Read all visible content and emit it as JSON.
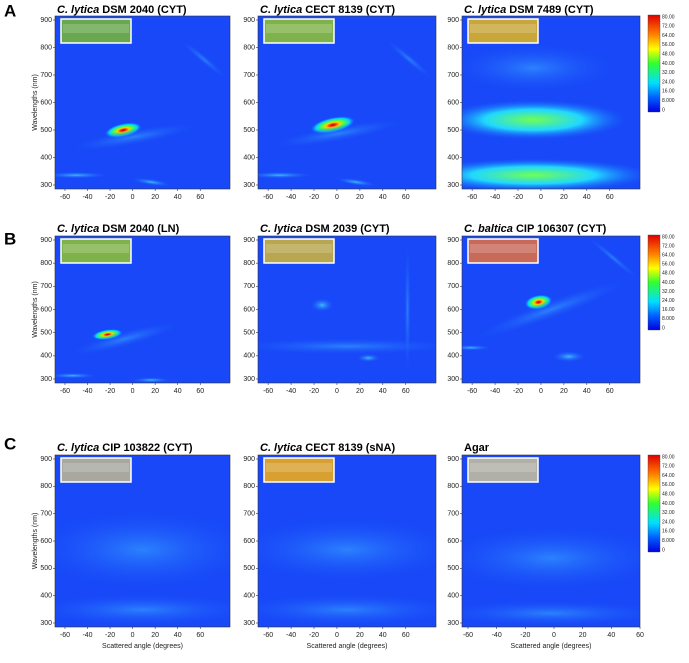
{
  "rows": [
    {
      "label": "A",
      "panels": [
        {
          "species": "C. lytica",
          "strain": "DSM 2040 (CYT)"
        },
        {
          "species": "C. lytica",
          "strain": "CECT 8139 (CYT)"
        },
        {
          "species": "C. lytica",
          "strain": "DSM 7489 (CYT)"
        }
      ]
    },
    {
      "label": "B",
      "panels": [
        {
          "species": "C. lytica",
          "strain": "DSM 2040 (LN)"
        },
        {
          "species": "C. lytica",
          "strain": "DSM 2039 (CYT)"
        },
        {
          "species": "C. baltica",
          "strain": "CIP 106307 (CYT)"
        }
      ]
    },
    {
      "label": "C",
      "panels": [
        {
          "species": "C. lytica",
          "strain": "CIP 103822 (CYT)"
        },
        {
          "species": "C. lytica",
          "strain": "CECT 8139 (sNA)"
        },
        {
          "title": "Agar"
        }
      ]
    }
  ],
  "y_axis_title": "Wavelengths (nm)",
  "x_axis_title": "Scattered angle (degrees)",
  "yticks": [
    900,
    800,
    700,
    600,
    500,
    400,
    300
  ],
  "xticks": [
    -60,
    -40,
    -20,
    0,
    20,
    40,
    60
  ],
  "colorbar_ticks": [
    "80.00",
    "72.00",
    "64.00",
    "56.00",
    "48.00",
    "40.00",
    "32.00",
    "24.00",
    "16.00",
    "8.000",
    "0"
  ]
}
